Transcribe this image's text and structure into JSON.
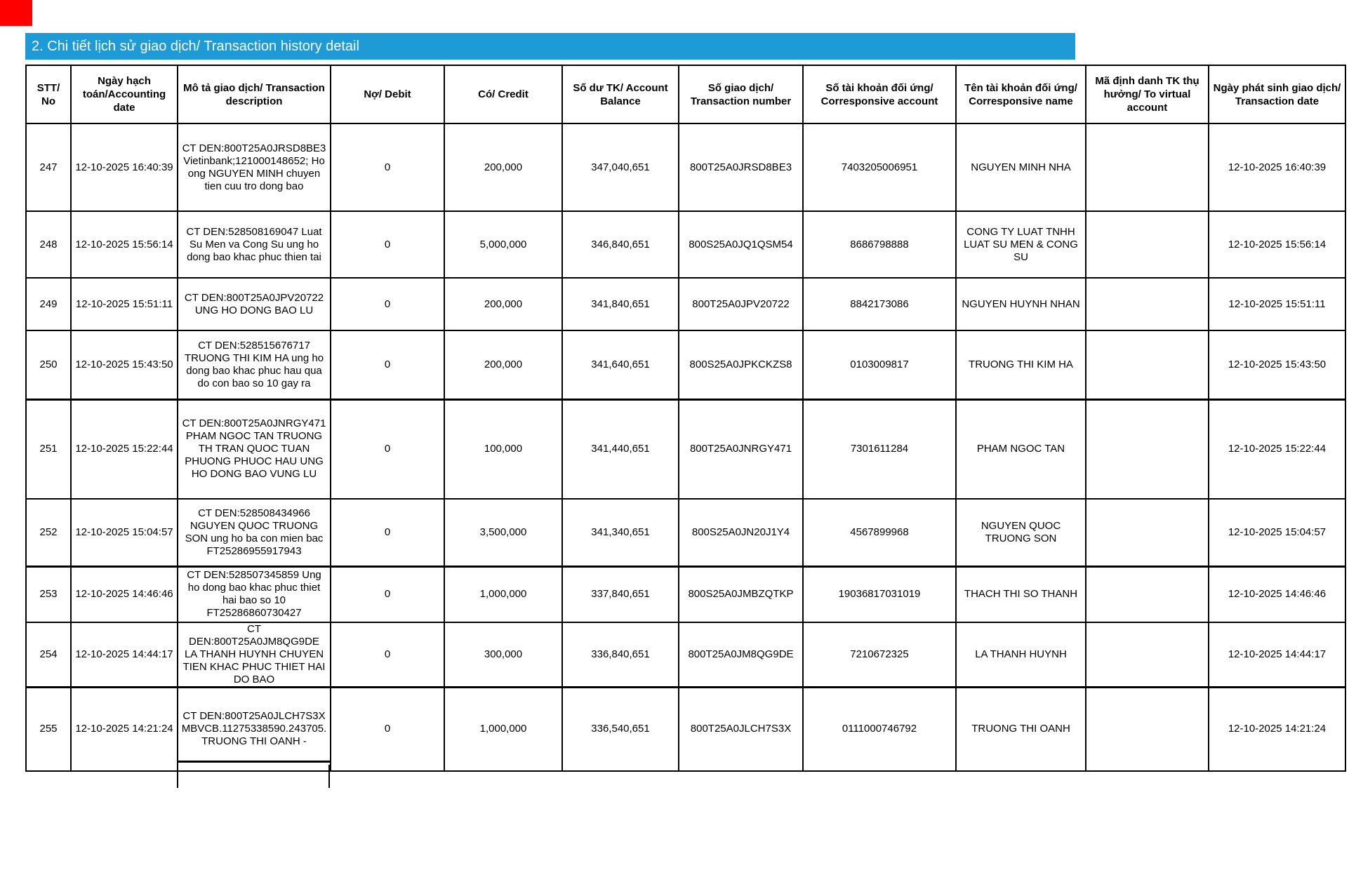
{
  "title_bar": {
    "text": "2. Chi tiết lịch sử giao dịch/ Transaction history detail"
  },
  "colors": {
    "title_bar_bg": "#1e9bd7",
    "title_bar_text": "#ffffff",
    "corner_marker": "#ff0000",
    "table_border": "#000000"
  },
  "table": {
    "columns": [
      {
        "key": "no",
        "label": "STT/ No"
      },
      {
        "key": "accounting_date",
        "label": "Ngày hạch toán/Accounting date"
      },
      {
        "key": "description",
        "label": "Mô tả giao dịch/ Transaction description"
      },
      {
        "key": "debit",
        "label": "Nợ/ Debit"
      },
      {
        "key": "credit",
        "label": "Có/ Credit"
      },
      {
        "key": "balance",
        "label": "Số dư TK/ Account Balance"
      },
      {
        "key": "transaction_number",
        "label": "Số giao dịch/ Transaction number"
      },
      {
        "key": "corresponsive_account",
        "label": "Số tài khoản đối ứng/ Corresponsive account"
      },
      {
        "key": "corresponsive_name",
        "label": "Tên tài khoản đối ứng/ Corresponsive name"
      },
      {
        "key": "virtual_account",
        "label": "Mã định danh TK thụ hưởng/ To virtual account"
      },
      {
        "key": "transaction_date",
        "label": "Ngày phát sinh giao dịch/ Transaction date"
      }
    ],
    "rows": [
      {
        "no": "247",
        "accounting_date": "12-10-2025 16:40:39",
        "description": "CT DEN:800T25A0JRSD8BE3 Vietinbank;121000148652; Ho ong NGUYEN MINH chuyen tien cuu tro dong bao",
        "debit": "0",
        "credit": "200,000",
        "balance": "347,040,651",
        "transaction_number": "800T25A0JRSD8BE3",
        "corresponsive_account": "7403205006951",
        "corresponsive_name": "NGUYEN MINH NHA",
        "virtual_account": "",
        "transaction_date": "12-10-2025 16:40:39"
      },
      {
        "no": "248",
        "accounting_date": "12-10-2025 15:56:14",
        "description": "CT DEN:528508169047 Luat Su Men va Cong Su ung ho dong bao khac phuc thien tai",
        "debit": "0",
        "credit": "5,000,000",
        "balance": "346,840,651",
        "transaction_number": "800S25A0JQ1QSM54",
        "corresponsive_account": "8686798888",
        "corresponsive_name": "CONG TY LUAT TNHH LUAT SU MEN & CONG SU",
        "virtual_account": "",
        "transaction_date": "12-10-2025 15:56:14"
      },
      {
        "no": "249",
        "accounting_date": "12-10-2025 15:51:11",
        "description": "CT DEN:800T25A0JPV20722 UNG HO DONG BAO LU",
        "debit": "0",
        "credit": "200,000",
        "balance": "341,840,651",
        "transaction_number": "800T25A0JPV20722",
        "corresponsive_account": "8842173086",
        "corresponsive_name": "NGUYEN HUYNH NHAN",
        "virtual_account": "",
        "transaction_date": "12-10-2025 15:51:11"
      },
      {
        "no": "250",
        "accounting_date": "12-10-2025 15:43:50",
        "description": "CT DEN:528515676717 TRUONG THI KIM HA ung ho dong bao khac phuc hau qua do con bao so 10 gay ra",
        "debit": "0",
        "credit": "200,000",
        "balance": "341,640,651",
        "transaction_number": "800S25A0JPKCKZS8",
        "corresponsive_account": "0103009817",
        "corresponsive_name": "TRUONG THI KIM HA",
        "virtual_account": "",
        "transaction_date": "12-10-2025 15:43:50"
      },
      {
        "no": "251",
        "accounting_date": "12-10-2025 15:22:44",
        "description": "CT DEN:800T25A0JNRGY471 PHAM NGOC TAN TRUONG TH TRAN QUOC TUAN PHUONG PHUOC HAU UNG HO DONG BAO VUNG LU",
        "debit": "0",
        "credit": "100,000",
        "balance": "341,440,651",
        "transaction_number": "800T25A0JNRGY471",
        "corresponsive_account": "7301611284",
        "corresponsive_name": "PHAM NGOC TAN",
        "virtual_account": "",
        "transaction_date": "12-10-2025 15:22:44"
      },
      {
        "no": "252",
        "accounting_date": "12-10-2025 15:04:57",
        "description": "CT DEN:528508434966 NGUYEN QUOC TRUONG SON ung ho ba con mien bac FT25286955917943",
        "debit": "0",
        "credit": "3,500,000",
        "balance": "341,340,651",
        "transaction_number": "800S25A0JN20J1Y4",
        "corresponsive_account": "4567899968",
        "corresponsive_name": "NGUYEN QUOC TRUONG SON",
        "virtual_account": "",
        "transaction_date": "12-10-2025 15:04:57"
      },
      {
        "no": "253",
        "accounting_date": "12-10-2025 14:46:46",
        "description": "CT DEN:528507345859 Ung ho dong bao khac phuc thiet hai bao so 10 FT25286860730427",
        "debit": "0",
        "credit": "1,000,000",
        "balance": "337,840,651",
        "transaction_number": "800S25A0JMBZQTKP",
        "corresponsive_account": "19036817031019",
        "corresponsive_name": "THACH THI SO THANH",
        "virtual_account": "",
        "transaction_date": "12-10-2025 14:46:46"
      },
      {
        "no": "254",
        "accounting_date": "12-10-2025 14:44:17",
        "description": "CT DEN:800T25A0JM8QG9DE LA THANH HUYNH CHUYEN TIEN KHAC PHUC THIET HAI DO BAO",
        "debit": "0",
        "credit": "300,000",
        "balance": "336,840,651",
        "transaction_number": "800T25A0JM8QG9DE",
        "corresponsive_account": "7210672325",
        "corresponsive_name": "LA THANH HUYNH",
        "virtual_account": "",
        "transaction_date": "12-10-2025 14:44:17"
      },
      {
        "no": "255",
        "accounting_date": "12-10-2025 14:21:24",
        "description": "CT DEN:800T25A0JLCH7S3X MBVCB.11275338590.243705.TRUONG THI OANH -",
        "debit": "0",
        "credit": "1,000,000",
        "balance": "336,540,651",
        "transaction_number": "800T25A0JLCH7S3X",
        "corresponsive_account": "0111000746792",
        "corresponsive_name": "TRUONG THI OANH",
        "virtual_account": "",
        "transaction_date": "12-10-2025 14:21:24"
      }
    ]
  }
}
